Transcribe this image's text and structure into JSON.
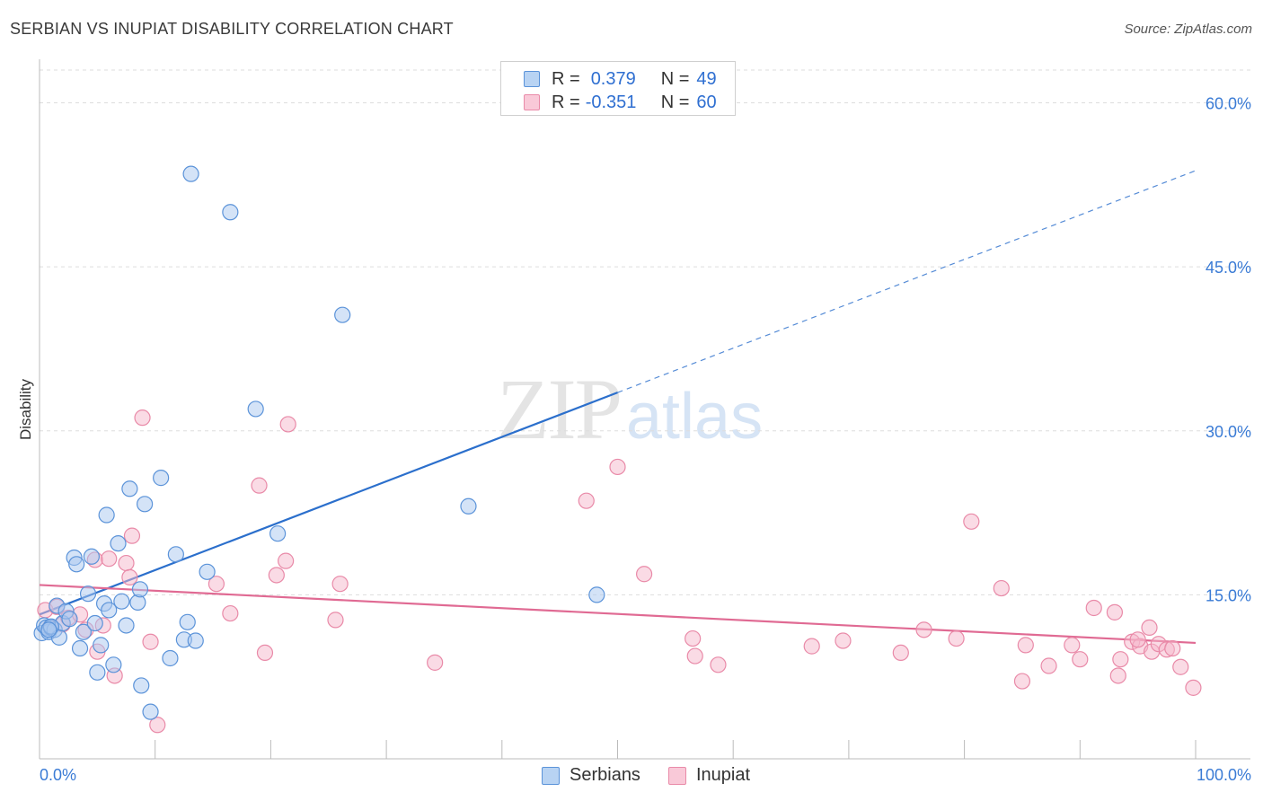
{
  "title": "SERBIAN VS INUPIAT DISABILITY CORRELATION CHART",
  "source": "Source: ZipAtlas.com",
  "watermark": {
    "zip": "ZIP",
    "atlas": "atlas"
  },
  "legend": {
    "rows": [
      {
        "r_label": "R =",
        "r_value": "0.379",
        "n_label": "N =",
        "n_value": "49"
      },
      {
        "r_label": "R =",
        "r_value": "-0.351",
        "n_label": "N =",
        "n_value": "60"
      }
    ]
  },
  "colors": {
    "serbians_fill": "#a9c8ef",
    "serbians_stroke": "#5b93d9",
    "serbians_line": "#2b6fcc",
    "inupiat_fill": "#f5b8cb",
    "inupiat_stroke": "#e98aa8",
    "inupiat_line": "#e06a93",
    "axis_label": "#3a7bd5",
    "grid": "#dddddd"
  },
  "chart_data": {
    "type": "scatter",
    "title": "SERBIAN VS INUPIAT DISABILITY CORRELATION CHART",
    "xlabel": "",
    "ylabel": "Disability",
    "xlim": [
      0,
      100
    ],
    "ylim": [
      0,
      63
    ],
    "x_tick_labels": [
      "0.0%",
      "100.0%"
    ],
    "y_ticks": [
      15,
      30,
      45,
      60
    ],
    "y_tick_labels": [
      "15.0%",
      "30.0%",
      "45.0%",
      "60.0%"
    ],
    "grid": true,
    "legend_position": "top-center",
    "series": [
      {
        "name": "Serbians",
        "points": [
          [
            0.2,
            11.5
          ],
          [
            0.4,
            12.2
          ],
          [
            0.6,
            12.0
          ],
          [
            0.8,
            11.6
          ],
          [
            1.0,
            12.0
          ],
          [
            1.3,
            11.8
          ],
          [
            1.5,
            14.0
          ],
          [
            1.7,
            11.1
          ],
          [
            2.0,
            12.4
          ],
          [
            2.3,
            13.5
          ],
          [
            2.6,
            12.8
          ],
          [
            3.0,
            18.4
          ],
          [
            3.2,
            17.8
          ],
          [
            3.5,
            10.1
          ],
          [
            3.8,
            11.6
          ],
          [
            4.2,
            15.1
          ],
          [
            4.5,
            18.5
          ],
          [
            4.8,
            12.4
          ],
          [
            5.0,
            7.9
          ],
          [
            5.3,
            10.4
          ],
          [
            5.6,
            14.2
          ],
          [
            5.8,
            22.3
          ],
          [
            6.0,
            13.6
          ],
          [
            6.4,
            8.6
          ],
          [
            6.8,
            19.7
          ],
          [
            7.1,
            14.4
          ],
          [
            7.5,
            12.2
          ],
          [
            7.8,
            24.7
          ],
          [
            8.5,
            14.3
          ],
          [
            8.7,
            15.5
          ],
          [
            8.8,
            6.7
          ],
          [
            9.1,
            23.3
          ],
          [
            9.6,
            4.3
          ],
          [
            10.5,
            25.7
          ],
          [
            11.3,
            9.2
          ],
          [
            11.8,
            18.7
          ],
          [
            12.5,
            10.9
          ],
          [
            12.8,
            12.5
          ],
          [
            13.5,
            10.8
          ],
          [
            13.1,
            53.5
          ],
          [
            14.5,
            17.1
          ],
          [
            16.5,
            50.0
          ],
          [
            18.7,
            32.0
          ],
          [
            20.6,
            20.6
          ],
          [
            26.2,
            40.6
          ],
          [
            37.1,
            23.1
          ],
          [
            48.2,
            15.0
          ],
          [
            1.0,
            12.1
          ],
          [
            0.8,
            11.8
          ]
        ]
      },
      {
        "name": "Inupiat",
        "points": [
          [
            0.5,
            13.6
          ],
          [
            0.9,
            12.0
          ],
          [
            1.5,
            13.9
          ],
          [
            2.0,
            12.3
          ],
          [
            2.5,
            12.9
          ],
          [
            3.5,
            13.2
          ],
          [
            4.0,
            11.8
          ],
          [
            4.8,
            18.2
          ],
          [
            5.0,
            9.8
          ],
          [
            5.5,
            12.2
          ],
          [
            6.0,
            18.3
          ],
          [
            6.5,
            7.6
          ],
          [
            7.5,
            17.9
          ],
          [
            7.8,
            16.6
          ],
          [
            8.0,
            20.4
          ],
          [
            8.9,
            31.2
          ],
          [
            9.6,
            10.7
          ],
          [
            10.2,
            3.1
          ],
          [
            15.3,
            16.0
          ],
          [
            16.5,
            13.3
          ],
          [
            19.0,
            25.0
          ],
          [
            19.5,
            9.7
          ],
          [
            20.5,
            16.8
          ],
          [
            21.3,
            18.1
          ],
          [
            21.5,
            30.6
          ],
          [
            25.6,
            12.7
          ],
          [
            26.0,
            16.0
          ],
          [
            34.2,
            8.8
          ],
          [
            47.3,
            23.6
          ],
          [
            50.0,
            26.7
          ],
          [
            52.3,
            16.9
          ],
          [
            56.5,
            11.0
          ],
          [
            56.7,
            9.4
          ],
          [
            58.7,
            8.6
          ],
          [
            66.8,
            10.3
          ],
          [
            69.5,
            10.8
          ],
          [
            74.5,
            9.7
          ],
          [
            76.5,
            11.8
          ],
          [
            79.3,
            11.0
          ],
          [
            80.6,
            21.7
          ],
          [
            83.2,
            15.6
          ],
          [
            85.0,
            7.1
          ],
          [
            85.3,
            10.4
          ],
          [
            87.3,
            8.5
          ],
          [
            89.3,
            10.4
          ],
          [
            90.0,
            9.1
          ],
          [
            91.2,
            13.8
          ],
          [
            93.0,
            13.4
          ],
          [
            93.3,
            7.6
          ],
          [
            93.5,
            9.1
          ],
          [
            94.5,
            10.7
          ],
          [
            95.2,
            10.3
          ],
          [
            96.0,
            12.0
          ],
          [
            96.2,
            9.8
          ],
          [
            96.8,
            10.5
          ],
          [
            97.5,
            10.0
          ],
          [
            98.0,
            10.1
          ],
          [
            98.7,
            8.4
          ],
          [
            99.8,
            6.5
          ],
          [
            95.0,
            10.9
          ]
        ]
      }
    ],
    "trendlines": [
      {
        "name": "Serbians",
        "x": [
          0,
          50
        ],
        "y": [
          13.2,
          33.5
        ],
        "dashed_extension_to_x": 100,
        "dashed_extension_y": 53.8
      },
      {
        "name": "Inupiat",
        "x": [
          0,
          100
        ],
        "y": [
          15.9,
          10.6
        ]
      }
    ]
  },
  "bottom_legend": [
    {
      "label": "Serbians"
    },
    {
      "label": "Inupiat"
    }
  ]
}
